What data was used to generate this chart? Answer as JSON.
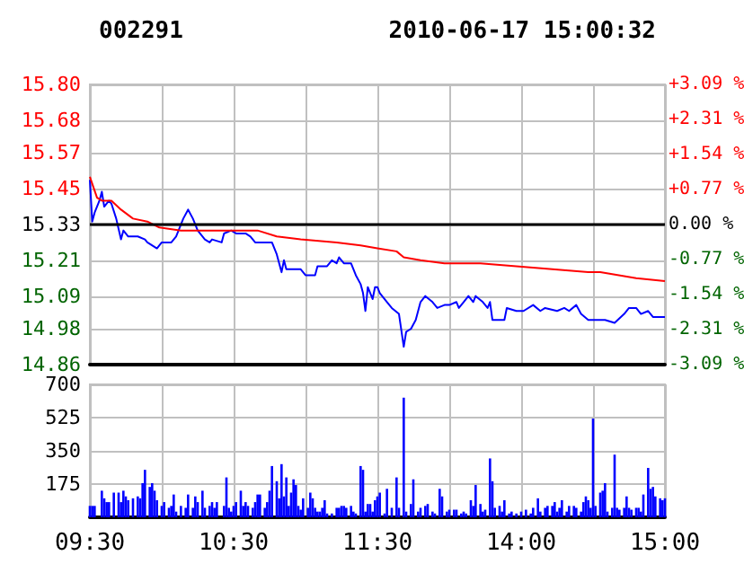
{
  "chart_data": [
    {
      "type": "line",
      "title": "002291",
      "subtitle": "2010-06-17 15:00:32",
      "categories": [
        null,
        null,
        null,
        null,
        null,
        null,
        null,
        null,
        null,
        null,
        null,
        null,
        null,
        null,
        null,
        null,
        null,
        null,
        null,
        null,
        null,
        null,
        null,
        null,
        null,
        null,
        null,
        null,
        null,
        null,
        null,
        null,
        null,
        null,
        null,
        null,
        null,
        null,
        null,
        null,
        null,
        null,
        null,
        null,
        null,
        null,
        null,
        null,
        null,
        null,
        null,
        null,
        null,
        null,
        null,
        null,
        null,
        null,
        null,
        null,
        null,
        null,
        null,
        null,
        null,
        null,
        null,
        null,
        null,
        null,
        null,
        null,
        null,
        null,
        null,
        null,
        null,
        null,
        null,
        null,
        null,
        null,
        null,
        null,
        null,
        null,
        null,
        null,
        null,
        null,
        null,
        null,
        null,
        null,
        null,
        null,
        null,
        null,
        null,
        null,
        null,
        null,
        null,
        null,
        null,
        null,
        null,
        null,
        null,
        null,
        null,
        null,
        null,
        null,
        null,
        null,
        null,
        null,
        null,
        null,
        null,
        null,
        null,
        null,
        null,
        null,
        null,
        null,
        null,
        null,
        null,
        null,
        null,
        null,
        null,
        null,
        null,
        null,
        null,
        null,
        null,
        null,
        null,
        null,
        null,
        null,
        null,
        null,
        null,
        null,
        null,
        null,
        null,
        null,
        null,
        null,
        null,
        null,
        null,
        null,
        null,
        null,
        null,
        null,
        null,
        null,
        null,
        null,
        null,
        null,
        null,
        null,
        null,
        null,
        null,
        null,
        null,
        null,
        null,
        null,
        null,
        null,
        null,
        null,
        null,
        null,
        null,
        null,
        null,
        null,
        null,
        null,
        null,
        null,
        null,
        null,
        null,
        null,
        null,
        null,
        null,
        null,
        null,
        null,
        null,
        null,
        null,
        null,
        null,
        null,
        null,
        null,
        null,
        null,
        null,
        null,
        null,
        null,
        null,
        null,
        null,
        null,
        null,
        null,
        null,
        null,
        null,
        null,
        null,
        null,
        null,
        null,
        null,
        null,
        null,
        null,
        null,
        null,
        null,
        null,
        null
      ],
      "ylim": [
        14.86,
        15.8
      ],
      "yticks": [
        14.86,
        14.98,
        15.09,
        15.21,
        15.33,
        15.45,
        15.57,
        15.68,
        {
          "value": 15.8,
          "label": "15.80"
        }
      ],
      "y2lim": [
        -3.09,
        3.09
      ],
      "y2ticks": [
        {
          "value": -3.09,
          "label": "-3.09 %"
        },
        {
          "value": -2.31,
          "label": "-2.31 %"
        },
        {
          "value": -1.54,
          "label": "-1.54 %"
        },
        {
          "value": -0.77,
          "label": "-0.77 %"
        },
        {
          "value": 0,
          "label": "0.00 %"
        },
        {
          "value": 0.77,
          "label": "+0.77 %"
        },
        {
          "value": 1.54,
          "label": "+1.54 %"
        },
        {
          "value": 2.31,
          "label": "+2.31 %"
        },
        {
          "value": 3.09,
          "label": "+3.09 %"
        }
      ],
      "grid": true,
      "ref_lines": [
        {
          "axis": "y",
          "value": 15.33,
          "color": "#000000"
        }
      ],
      "series": [
        {
          "color": "#0000ff",
          "values": [
            15.48,
            15.34,
            15.37,
            null,
            15.41,
            15.44,
            15.39,
            null,
            15.41,
            15.4,
            null,
            15.35,
            null,
            15.28,
            15.31,
            null,
            15.29,
            null,
            null,
            null,
            15.29,
            null,
            null,
            15.28,
            15.27,
            null,
            null,
            null,
            15.25,
            null,
            15.27,
            null,
            null,
            null,
            15.27,
            null,
            15.29,
            null,
            null,
            15.35,
            null,
            15.38,
            null,
            15.35,
            null,
            15.31,
            null,
            null,
            15.28,
            null,
            15.27,
            15.28,
            null,
            null,
            null,
            15.27,
            15.3,
            null,
            null,
            15.31,
            null,
            15.3,
            null,
            null,
            null,
            15.3,
            null,
            15.29,
            null,
            15.27,
            null,
            null,
            null,
            15.27,
            null,
            null,
            15.27,
            null,
            15.23,
            null,
            15.17,
            15.21,
            15.18,
            null,
            null,
            15.18,
            null,
            null,
            15.18,
            15.17,
            15.16,
            null,
            null,
            null,
            15.16,
            15.19,
            null,
            null,
            null,
            15.19,
            null,
            15.21,
            null,
            15.2,
            15.22,
            15.21,
            15.2,
            null,
            null,
            15.2,
            null,
            15.16,
            null,
            15.13,
            15.1,
            15.04,
            15.12,
            null,
            15.08,
            15.12,
            15.12,
            15.1,
            null,
            null,
            15.07,
            null,
            15.05,
            null,
            null,
            15.03,
            null,
            14.92,
            14.97,
            null,
            14.98,
            null,
            15.01,
            null,
            15.07,
            null,
            15.09,
            null,
            null,
            15.07,
            null,
            15.05,
            null,
            null,
            15.06,
            null,
            15.06,
            null,
            null,
            15.07,
            15.05,
            null,
            15.07,
            null,
            15.09,
            null,
            15.07,
            15.09,
            null,
            null,
            15.07,
            null,
            15.05,
            15.07,
            15.01,
            null,
            null,
            null,
            null,
            15.01,
            15.05,
            null,
            null,
            null,
            15.04,
            null,
            null,
            15.04,
            null,
            null,
            null,
            15.06,
            null,
            null,
            15.04,
            null,
            15.05,
            null,
            null,
            null,
            null,
            15.04,
            null,
            null,
            15.05,
            null,
            15.04,
            null,
            null,
            15.06,
            null,
            15.03,
            null,
            null,
            15.01,
            null,
            null,
            null,
            null,
            15.01,
            null,
            15.01,
            null,
            null,
            null,
            15.0,
            null,
            null,
            null,
            15.03,
            null,
            15.05,
            null,
            null,
            15.05,
            null,
            15.03,
            null,
            null,
            15.04,
            null,
            15.02,
            null,
            null,
            15.02,
            null,
            15.02
          ]
        },
        {
          "color": "#ff0000",
          "values": [
            15.49,
            null,
            null,
            15.42,
            null,
            15.41,
            null,
            null,
            null,
            15.41,
            null,
            null,
            null,
            15.38,
            null,
            null,
            null,
            null,
            15.35,
            null,
            null,
            null,
            null,
            null,
            15.34,
            null,
            null,
            null,
            null,
            15.32,
            null,
            null,
            null,
            null,
            null,
            null,
            null,
            null,
            15.31,
            null,
            null,
            null,
            null,
            15.31,
            null,
            null,
            null,
            null,
            null,
            null,
            null,
            null,
            null,
            null,
            null,
            null,
            null,
            null,
            15.31,
            null,
            null,
            null,
            null,
            null,
            null,
            null,
            null,
            null,
            null,
            null,
            15.31,
            null,
            null,
            null,
            null,
            null,
            null,
            null,
            15.29,
            null,
            null,
            null,
            null,
            null,
            null,
            null,
            null,
            null,
            15.28,
            null,
            null,
            null,
            null,
            null,
            null,
            null,
            null,
            null,
            null,
            null,
            null,
            null,
            null,
            15.27,
            null,
            null,
            null,
            null,
            null,
            null,
            null,
            null,
            null,
            15.26,
            null,
            null,
            null,
            null,
            null,
            null,
            15.25,
            null,
            null,
            null,
            null,
            null,
            null,
            null,
            15.24,
            null,
            null,
            15.22,
            null,
            null,
            null,
            null,
            null,
            null,
            15.21,
            null,
            null,
            null,
            null,
            null,
            null,
            null,
            null,
            null,
            15.2,
            null,
            null,
            null,
            null,
            null,
            null,
            null,
            null,
            null,
            null,
            null,
            null,
            null,
            null,
            15.2,
            null,
            null,
            null,
            null,
            null,
            null,
            null,
            null,
            null,
            null,
            null,
            null,
            null,
            null,
            15.19,
            null,
            null,
            null,
            null,
            null,
            null,
            null,
            null,
            null,
            null,
            null,
            null,
            null,
            null,
            15.18,
            null,
            null,
            null,
            null,
            null,
            null,
            null,
            null,
            null,
            null,
            null,
            null,
            null,
            null,
            15.17,
            null,
            null,
            null,
            null,
            15.17,
            null,
            null,
            null,
            null,
            null,
            null,
            null,
            null,
            null,
            null,
            null,
            null,
            null,
            null,
            15.15,
            null,
            null,
            null,
            null,
            null,
            null,
            null,
            null,
            null,
            null,
            null,
            15.14
          ]
        }
      ]
    },
    {
      "type": "bar",
      "categories": [
        "09:30",
        null,
        null,
        null,
        null,
        null,
        null,
        null,
        null,
        null,
        null,
        null,
        null,
        null,
        null,
        null,
        null,
        null,
        null,
        null,
        null,
        null,
        null,
        null,
        null,
        null,
        null,
        null,
        null,
        null,
        null,
        null,
        null,
        null,
        null,
        null,
        null,
        null,
        null,
        null,
        null,
        null,
        null,
        null,
        null,
        null,
        null,
        null,
        null,
        null,
        null,
        null,
        null,
        null,
        null,
        null,
        null,
        null,
        null,
        null,
        "10:30",
        null,
        null,
        null,
        null,
        null,
        null,
        null,
        null,
        null,
        null,
        null,
        null,
        null,
        null,
        null,
        null,
        null,
        null,
        null,
        null,
        null,
        null,
        null,
        null,
        null,
        null,
        null,
        null,
        null,
        null,
        null,
        null,
        null,
        null,
        null,
        null,
        null,
        null,
        null,
        null,
        null,
        null,
        null,
        null,
        null,
        null,
        null,
        null,
        null,
        null,
        null,
        null,
        null,
        null,
        null,
        null,
        null,
        null,
        null,
        "11:30",
        null,
        null,
        null,
        null,
        null,
        null,
        null,
        null,
        null,
        null,
        null,
        null,
        null,
        null,
        null,
        null,
        null,
        null,
        null,
        null,
        null,
        null,
        null,
        null,
        null,
        null,
        null,
        null,
        null,
        null,
        null,
        null,
        null,
        null,
        null,
        null,
        null,
        null,
        null,
        null,
        null,
        null,
        null,
        null,
        null,
        null,
        null,
        null,
        null,
        null,
        null,
        null,
        null,
        null,
        null,
        null,
        null,
        null,
        null,
        "14:00",
        null,
        null,
        null,
        null,
        null,
        null,
        null,
        null,
        null,
        null,
        null,
        null,
        null,
        null,
        null,
        null,
        null,
        null,
        null,
        null,
        null,
        null,
        null,
        null,
        null,
        null,
        null,
        null,
        null,
        null,
        null,
        null,
        null,
        null,
        null,
        null,
        null,
        null,
        null,
        null,
        null,
        null,
        null,
        null,
        null,
        null,
        null,
        null,
        null,
        null,
        null,
        null,
        null,
        null,
        null,
        null,
        null,
        null,
        null,
        "15:00"
      ],
      "ylim": [
        0,
        700
      ],
      "yticks": [
        175,
        350,
        525,
        700
      ],
      "grid": true,
      "series": [
        {
          "color": "#0000ff",
          "values": [
            60,
            60,
            60,
            null,
            null,
            140,
            100,
            80,
            80,
            null,
            130,
            null,
            130,
            80,
            140,
            110,
            90,
            null,
            100,
            null,
            110,
            100,
            180,
            250,
            null,
            160,
            180,
            140,
            90,
            null,
            60,
            80,
            null,
            50,
            60,
            120,
            30,
            null,
            60,
            null,
            50,
            120,
            null,
            50,
            110,
            80,
            null,
            140,
            50,
            null,
            60,
            80,
            50,
            80,
            null,
            null,
            60,
            210,
            50,
            30,
            60,
            80,
            null,
            140,
            60,
            80,
            60,
            null,
            50,
            80,
            120,
            120,
            null,
            50,
            80,
            140,
            270,
            null,
            190,
            100,
            280,
            110,
            210,
            60,
            130,
            200,
            170,
            60,
            40,
            100,
            null,
            50,
            130,
            100,
            50,
            30,
            30,
            50,
            90,
            20,
            null,
            20,
            null,
            50,
            50,
            60,
            60,
            50,
            null,
            60,
            30,
            20,
            null,
            270,
            250,
            30,
            70,
            70,
            30,
            90,
            110,
            130,
            null,
            20,
            150,
            null,
            50,
            null,
            210,
            50,
            null,
            630,
            30,
            null,
            70,
            200,
            null,
            30,
            50,
            null,
            60,
            70,
            null,
            30,
            20,
            null,
            150,
            110,
            null,
            30,
            40,
            null,
            40,
            40,
            null,
            20,
            30,
            20,
            null,
            90,
            60,
            170,
            null,
            70,
            30,
            40,
            null,
            310,
            190,
            50,
            null,
            60,
            30,
            90,
            null,
            20,
            30,
            null,
            20,
            null,
            30,
            null,
            40,
            null,
            20,
            50,
            null,
            100,
            30,
            null,
            50,
            60,
            null,
            60,
            80,
            30,
            50,
            90,
            null,
            30,
            60,
            null,
            60,
            50,
            null,
            30,
            80,
            110,
            90,
            50,
            520,
            60,
            null,
            130,
            140,
            180,
            30,
            null,
            50,
            330,
            50,
            40,
            null,
            50,
            110,
            50,
            40,
            null,
            50,
            50,
            30,
            120,
            null,
            260,
            150,
            160,
            110,
            null,
            100,
            90,
            100
          ]
        }
      ]
    }
  ]
}
